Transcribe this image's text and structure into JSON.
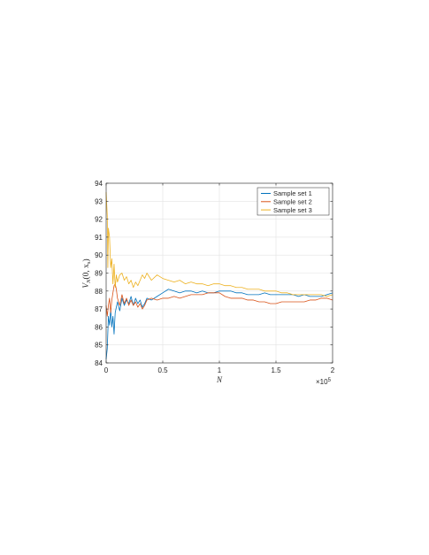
{
  "chart_data": {
    "type": "line",
    "title": "",
    "xlabel": "N",
    "ylabel": "V_N(0, x_s)",
    "ylabel_parts": {
      "main": "V",
      "sub": "N",
      "args": "(0, x",
      "args_sub": "s",
      "close": ")"
    },
    "x_exponent": {
      "base": "×10",
      "power": "5"
    },
    "xlim": [
      0,
      200000
    ],
    "ylim": [
      84,
      94
    ],
    "x_ticks": [
      0,
      50000,
      100000,
      150000,
      200000
    ],
    "x_tick_labels": [
      "0",
      "0.5",
      "1",
      "1.5",
      "2"
    ],
    "y_ticks": [
      84,
      85,
      86,
      87,
      88,
      89,
      90,
      91,
      92,
      93,
      94
    ],
    "y_tick_labels": [
      "84",
      "85",
      "86",
      "87",
      "88",
      "89",
      "90",
      "91",
      "92",
      "93",
      "94"
    ],
    "grid": true,
    "legend_position": "top-right",
    "series": [
      {
        "name": "Sample set 1",
        "color": "#0072BD",
        "points": [
          [
            0,
            84.2
          ],
          [
            1000,
            84.8
          ],
          [
            2000,
            86.6
          ],
          [
            3000,
            86.1
          ],
          [
            4000,
            87.0
          ],
          [
            5000,
            86.0
          ],
          [
            6000,
            86.6
          ],
          [
            7000,
            85.6
          ],
          [
            8000,
            86.8
          ],
          [
            10000,
            87.4
          ],
          [
            12000,
            86.9
          ],
          [
            14000,
            87.6
          ],
          [
            16000,
            87.2
          ],
          [
            18000,
            87.5
          ],
          [
            20000,
            87.3
          ],
          [
            22000,
            87.7
          ],
          [
            24000,
            87.2
          ],
          [
            26000,
            87.6
          ],
          [
            28000,
            87.3
          ],
          [
            30000,
            87.5
          ],
          [
            32000,
            87.1
          ],
          [
            34000,
            87.3
          ],
          [
            36000,
            87.6
          ],
          [
            40000,
            87.5
          ],
          [
            45000,
            87.7
          ],
          [
            50000,
            87.9
          ],
          [
            55000,
            88.1
          ],
          [
            60000,
            88.0
          ],
          [
            65000,
            87.9
          ],
          [
            70000,
            88.0
          ],
          [
            75000,
            88.0
          ],
          [
            80000,
            87.9
          ],
          [
            85000,
            88.0
          ],
          [
            90000,
            87.9
          ],
          [
            95000,
            87.9
          ],
          [
            100000,
            88.0
          ],
          [
            105000,
            88.0
          ],
          [
            110000,
            88.0
          ],
          [
            115000,
            87.9
          ],
          [
            120000,
            87.9
          ],
          [
            125000,
            87.8
          ],
          [
            130000,
            87.8
          ],
          [
            135000,
            87.8
          ],
          [
            140000,
            87.9
          ],
          [
            145000,
            87.8
          ],
          [
            150000,
            87.8
          ],
          [
            155000,
            87.8
          ],
          [
            160000,
            87.8
          ],
          [
            165000,
            87.8
          ],
          [
            170000,
            87.7
          ],
          [
            175000,
            87.8
          ],
          [
            180000,
            87.7
          ],
          [
            185000,
            87.7
          ],
          [
            190000,
            87.7
          ],
          [
            195000,
            87.8
          ],
          [
            200000,
            87.9
          ]
        ]
      },
      {
        "name": "Sample set 2",
        "color": "#D95319",
        "points": [
          [
            0,
            87.2
          ],
          [
            1000,
            86.6
          ],
          [
            2000,
            87.2
          ],
          [
            3000,
            87.6
          ],
          [
            4000,
            86.8
          ],
          [
            5000,
            87.5
          ],
          [
            6000,
            87.9
          ],
          [
            7000,
            88.3
          ],
          [
            8000,
            88.4
          ],
          [
            9000,
            88.1
          ],
          [
            10000,
            87.6
          ],
          [
            12000,
            87.2
          ],
          [
            14000,
            87.8
          ],
          [
            16000,
            87.3
          ],
          [
            18000,
            87.6
          ],
          [
            20000,
            87.2
          ],
          [
            22000,
            87.5
          ],
          [
            24000,
            87.2
          ],
          [
            26000,
            87.4
          ],
          [
            28000,
            87.1
          ],
          [
            30000,
            87.3
          ],
          [
            32000,
            87.0
          ],
          [
            34000,
            87.2
          ],
          [
            36000,
            87.5
          ],
          [
            40000,
            87.6
          ],
          [
            45000,
            87.5
          ],
          [
            50000,
            87.6
          ],
          [
            55000,
            87.6
          ],
          [
            60000,
            87.7
          ],
          [
            65000,
            87.6
          ],
          [
            70000,
            87.7
          ],
          [
            75000,
            87.8
          ],
          [
            80000,
            87.8
          ],
          [
            85000,
            87.8
          ],
          [
            90000,
            87.9
          ],
          [
            95000,
            87.9
          ],
          [
            100000,
            87.9
          ],
          [
            105000,
            87.7
          ],
          [
            110000,
            87.6
          ],
          [
            115000,
            87.6
          ],
          [
            120000,
            87.6
          ],
          [
            125000,
            87.5
          ],
          [
            130000,
            87.5
          ],
          [
            135000,
            87.4
          ],
          [
            140000,
            87.4
          ],
          [
            145000,
            87.3
          ],
          [
            150000,
            87.3
          ],
          [
            155000,
            87.4
          ],
          [
            160000,
            87.4
          ],
          [
            165000,
            87.4
          ],
          [
            170000,
            87.4
          ],
          [
            175000,
            87.4
          ],
          [
            180000,
            87.5
          ],
          [
            185000,
            87.5
          ],
          [
            190000,
            87.6
          ],
          [
            195000,
            87.6
          ],
          [
            200000,
            87.5
          ]
        ]
      },
      {
        "name": "Sample set 3",
        "color": "#EDB120",
        "points": [
          [
            0,
            93.5
          ],
          [
            1000,
            92.2
          ],
          [
            1500,
            89.3
          ],
          [
            2000,
            91.5
          ],
          [
            3000,
            91.0
          ],
          [
            4000,
            89.3
          ],
          [
            5000,
            89.8
          ],
          [
            6000,
            88.4
          ],
          [
            7000,
            89.5
          ],
          [
            8000,
            88.2
          ],
          [
            9000,
            88.9
          ],
          [
            10000,
            88.5
          ],
          [
            12000,
            88.9
          ],
          [
            14000,
            89.0
          ],
          [
            16000,
            88.6
          ],
          [
            18000,
            88.8
          ],
          [
            20000,
            88.4
          ],
          [
            22000,
            88.6
          ],
          [
            24000,
            88.2
          ],
          [
            26000,
            88.5
          ],
          [
            28000,
            88.3
          ],
          [
            30000,
            88.6
          ],
          [
            32000,
            88.9
          ],
          [
            34000,
            88.7
          ],
          [
            36000,
            89.0
          ],
          [
            40000,
            88.6
          ],
          [
            45000,
            88.9
          ],
          [
            50000,
            88.7
          ],
          [
            55000,
            88.6
          ],
          [
            60000,
            88.5
          ],
          [
            65000,
            88.6
          ],
          [
            70000,
            88.4
          ],
          [
            75000,
            88.5
          ],
          [
            80000,
            88.4
          ],
          [
            85000,
            88.4
          ],
          [
            90000,
            88.3
          ],
          [
            95000,
            88.4
          ],
          [
            100000,
            88.4
          ],
          [
            105000,
            88.3
          ],
          [
            110000,
            88.3
          ],
          [
            115000,
            88.2
          ],
          [
            120000,
            88.2
          ],
          [
            125000,
            88.1
          ],
          [
            130000,
            88.1
          ],
          [
            135000,
            88.1
          ],
          [
            140000,
            88.0
          ],
          [
            145000,
            88.0
          ],
          [
            150000,
            88.0
          ],
          [
            155000,
            87.9
          ],
          [
            160000,
            87.9
          ],
          [
            165000,
            87.8
          ],
          [
            170000,
            87.8
          ],
          [
            175000,
            87.8
          ],
          [
            180000,
            87.8
          ],
          [
            185000,
            87.8
          ],
          [
            190000,
            87.8
          ],
          [
            195000,
            87.7
          ],
          [
            200000,
            87.8
          ]
        ]
      }
    ]
  }
}
